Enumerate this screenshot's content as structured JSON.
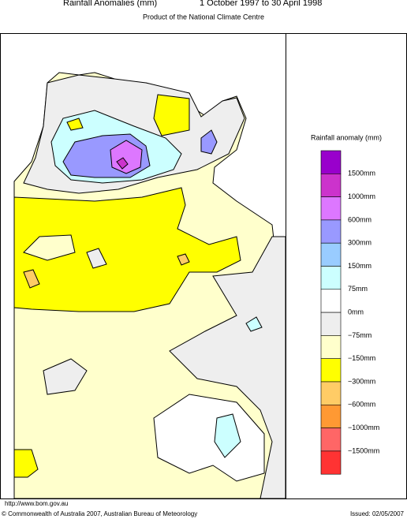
{
  "header": {
    "title": "Rainfall Anomalies (mm)",
    "period": "1 October 1997 to 30 April 1998",
    "subtitle": "Product of the National Climate Centre"
  },
  "legend": {
    "title": "Rainfall anomaly (mm)",
    "colors": [
      "#9900cc",
      "#cc33cc",
      "#dd77ff",
      "#9999ff",
      "#99ccff",
      "#ccffff",
      "#ffffff",
      "#eeeeee",
      "#ffffcc",
      "#ffff00",
      "#ffcc66",
      "#ff9933",
      "#ff6666",
      "#ff3333"
    ],
    "labels": [
      "1500mm",
      "1000mm",
      "600mm",
      "300mm",
      "150mm",
      "75mm",
      "0mm",
      "−75mm",
      "−150mm",
      "−300mm",
      "−600mm",
      "−1000mm",
      "−1500mm"
    ]
  },
  "footer": {
    "url": "http://www.bom.gov.au",
    "copyright": "© Commonwealth of Australia 2007, Australian Bureau of Meteorology",
    "issued": "Issued: 02/05/2007"
  }
}
